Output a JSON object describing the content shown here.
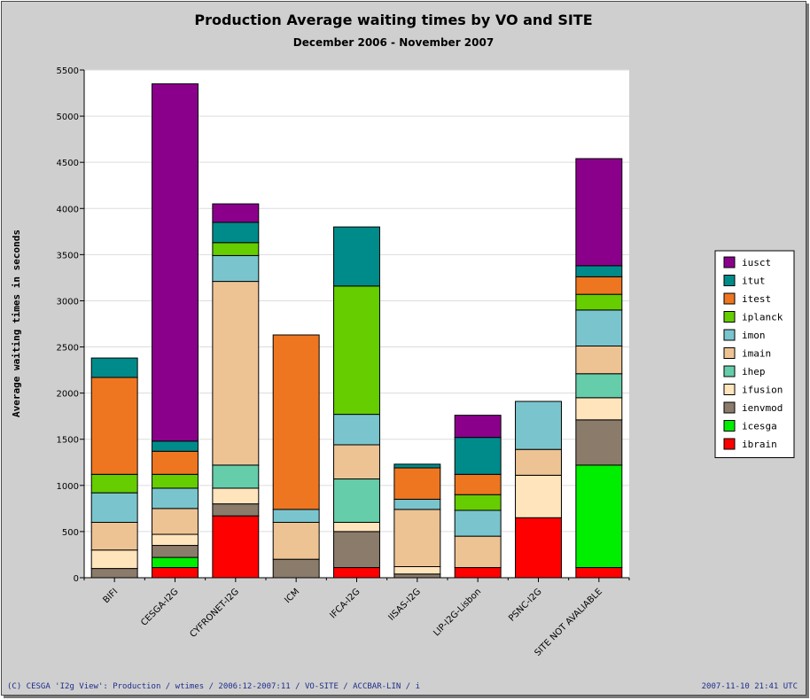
{
  "chart_data": {
    "type": "bar",
    "stacked": true,
    "title": "Production Average waiting times by VO and SITE",
    "subtitle": "December 2006 - November 2007",
    "ylabel": "Average waiting times in seconds",
    "xlabel": "",
    "ylim": [
      0,
      5500
    ],
    "yticks": [
      "0",
      "500",
      "1000",
      "1500",
      "2000",
      "2500",
      "3000",
      "3500",
      "4000",
      "4500",
      "5000",
      "5500"
    ],
    "grid": true,
    "legend_position": "right",
    "categories": [
      "BIFI",
      "CESGA-I2G",
      "CYFRONET-I2G",
      "ICM",
      "IFCA-I2G",
      "IISAS-I2G",
      "LIP-I2G-Lisbon",
      "PSNC-I2G",
      "SITE NOT AVALIABLE"
    ],
    "series": [
      {
        "name": "ibrain",
        "color": "#ff0000",
        "values": [
          0,
          110,
          670,
          0,
          110,
          0,
          110,
          650,
          110
        ]
      },
      {
        "name": "icesga",
        "color": "#00ee00",
        "values": [
          0,
          110,
          0,
          0,
          0,
          0,
          0,
          0,
          1110
        ]
      },
      {
        "name": "ienvmod",
        "color": "#8b7b6b",
        "values": [
          100,
          130,
          130,
          200,
          390,
          40,
          0,
          0,
          490
        ]
      },
      {
        "name": "ifusion",
        "color": "#ffe4bc",
        "values": [
          200,
          120,
          170,
          0,
          100,
          80,
          0,
          460,
          240
        ]
      },
      {
        "name": "ihep",
        "color": "#66cdaa",
        "values": [
          0,
          0,
          250,
          0,
          470,
          0,
          0,
          0,
          260
        ]
      },
      {
        "name": "imain",
        "color": "#edc394",
        "values": [
          300,
          280,
          1990,
          400,
          370,
          620,
          340,
          280,
          300
        ]
      },
      {
        "name": "imon",
        "color": "#7ac5cd",
        "values": [
          320,
          220,
          280,
          140,
          330,
          110,
          280,
          520,
          390
        ]
      },
      {
        "name": "iplanck",
        "color": "#66cd00",
        "values": [
          200,
          150,
          140,
          0,
          1390,
          0,
          170,
          0,
          170
        ]
      },
      {
        "name": "itest",
        "color": "#ee7621",
        "values": [
          1050,
          250,
          0,
          1890,
          0,
          340,
          220,
          0,
          190
        ]
      },
      {
        "name": "itut",
        "color": "#008b8b",
        "values": [
          210,
          110,
          220,
          0,
          640,
          40,
          400,
          0,
          120
        ]
      },
      {
        "name": "iusct",
        "color": "#8b008b",
        "values": [
          0,
          3870,
          200,
          0,
          0,
          0,
          240,
          0,
          1160
        ]
      }
    ]
  },
  "footer": {
    "left": "(C) CESGA 'I2g View': Production / wtimes / 2006:12-2007:11 / VO-SITE / ACCBAR-LIN / i",
    "right": "2007-11-10 21:41 UTC"
  }
}
